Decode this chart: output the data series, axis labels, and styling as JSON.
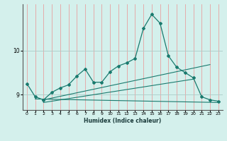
{
  "xlabel": "Humidex (Indice chaleur)",
  "ylabel": "",
  "bg_color": "#d4f0ec",
  "line_color": "#1a7a6e",
  "grid_color_v": "#e8a0a0",
  "xlim": [
    -0.5,
    23.5
  ],
  "ylim": [
    8.65,
    11.05
  ],
  "yticks": [
    9,
    10
  ],
  "xticks": [
    0,
    1,
    2,
    3,
    4,
    5,
    6,
    7,
    8,
    9,
    10,
    11,
    12,
    13,
    14,
    15,
    16,
    17,
    18,
    19,
    20,
    21,
    22,
    23
  ],
  "line1_x": [
    0,
    1,
    2,
    3,
    4,
    5,
    6,
    7,
    8,
    9,
    10,
    11,
    12,
    13,
    14,
    15,
    16,
    17,
    18,
    19,
    20,
    21,
    22,
    23
  ],
  "line1_y": [
    9.25,
    8.95,
    8.88,
    9.05,
    9.15,
    9.22,
    9.42,
    9.58,
    9.28,
    9.28,
    9.52,
    9.65,
    9.72,
    9.82,
    10.5,
    10.82,
    10.62,
    9.88,
    9.62,
    9.5,
    9.38,
    8.95,
    8.88,
    8.85
  ],
  "line2_x": [
    1,
    23
  ],
  "line2_y": [
    8.9,
    8.82
  ],
  "line3_x": [
    2,
    22
  ],
  "line3_y": [
    8.88,
    9.68
  ],
  "line4_x": [
    2,
    20
  ],
  "line4_y": [
    8.82,
    9.35
  ]
}
